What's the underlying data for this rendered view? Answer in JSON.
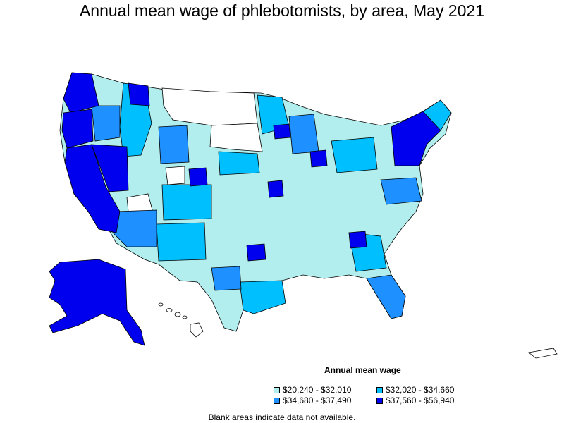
{
  "title": "Annual mean wage of phlebotomists, by area, May 2021",
  "legend": {
    "title": "Annual mean wage",
    "items": [
      {
        "label": "$20,240 - $32,010",
        "color": "#b3eeee"
      },
      {
        "label": "$32,020 - $34,660",
        "color": "#00bfff"
      },
      {
        "label": "$34,680 - $37,490",
        "color": "#1e90ff"
      },
      {
        "label": "$37,560 - $56,940",
        "color": "#0000ee"
      }
    ]
  },
  "note": "Blank areas indicate data not available.",
  "colors": {
    "outline": "#000000",
    "no_data": "#ffffff"
  }
}
